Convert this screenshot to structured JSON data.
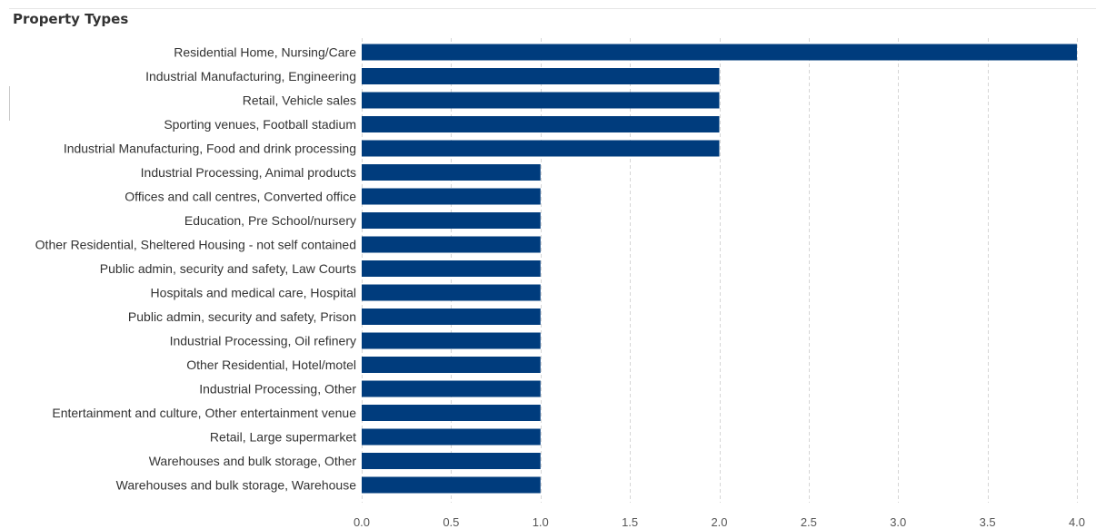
{
  "panel": {
    "title": "Property Types"
  },
  "colors": {
    "bar": "#003c7d",
    "grid": "#d6d6d6",
    "label": "#333333",
    "tick": "#555555"
  },
  "chart_data": {
    "type": "bar",
    "orientation": "horizontal",
    "title": "Property Types",
    "xlabel": "",
    "ylabel": "",
    "xlim": [
      0,
      4.0
    ],
    "x_ticks": [
      "0.0",
      "0.5",
      "1.0",
      "1.5",
      "2.0",
      "2.5",
      "3.0",
      "3.5",
      "4.0"
    ],
    "grid": "vertical dashed",
    "categories": [
      "Residential Home, Nursing/Care",
      "Industrial Manufacturing, Engineering",
      "Retail, Vehicle sales",
      "Sporting venues, Football stadium",
      "Industrial Manufacturing, Food and drink processing",
      "Industrial Processing, Animal products",
      "Offices and call centres, Converted office",
      "Education, Pre School/nursery",
      "Other Residential, Sheltered Housing - not self contained",
      "Public admin, security and safety, Law Courts",
      "Hospitals and medical care, Hospital",
      "Public admin, security and safety, Prison",
      "Industrial Processing, Oil refinery",
      "Other Residential, Hotel/motel",
      "Industrial Processing, Other",
      "Entertainment and culture, Other entertainment venue",
      "Retail, Large supermarket",
      "Warehouses and bulk storage, Other",
      "Warehouses and bulk storage, Warehouse"
    ],
    "values": [
      4,
      2,
      2,
      2,
      2,
      1,
      1,
      1,
      1,
      1,
      1,
      1,
      1,
      1,
      1,
      1,
      1,
      1,
      1
    ]
  }
}
